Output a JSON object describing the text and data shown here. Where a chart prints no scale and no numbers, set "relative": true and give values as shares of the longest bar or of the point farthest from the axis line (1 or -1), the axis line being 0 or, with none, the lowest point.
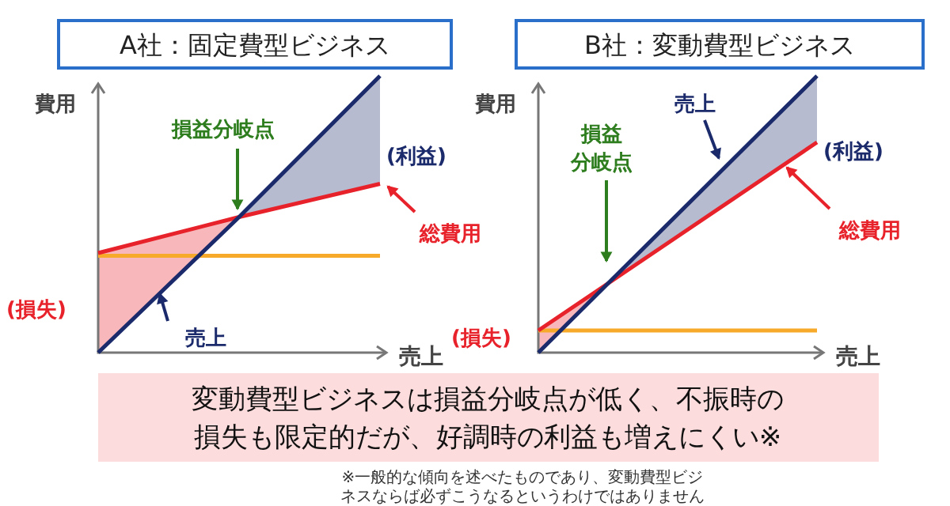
{
  "chart_data": [
    {
      "type": "line",
      "title": "A社：固定費型ビジネス",
      "xlabel": "売上",
      "ylabel": "費用",
      "relative": true,
      "categories": [
        null,
        null,
        null
      ],
      "series": [
        {
          "name": "売上",
          "color": "#1b2a6b",
          "values": [
            0,
            0.49,
            1
          ],
          "lower": [
            null,
            0.49,
            0.61
          ],
          "upper": [
            null,
            0.49,
            1
          ]
        },
        {
          "name": "総費用",
          "color": "#e8222a",
          "values": [
            0.36,
            0.49,
            0.61
          ],
          "lower": [
            0,
            0.49,
            null
          ],
          "upper": [
            0.36,
            0.49,
            null
          ]
        },
        {
          "color": "#f7a929",
          "values": [
            0.35,
            0.35,
            0.35
          ]
        }
      ],
      "annotations": [
        "損益分岐点",
        "(損失)",
        "(利益)"
      ]
    },
    {
      "type": "line",
      "title": "B社：変動費型ビジネス",
      "xlabel": "売上",
      "ylabel": "費用",
      "relative": true,
      "categories": [
        null,
        null,
        null,
        null,
        null
      ],
      "series": [
        {
          "name": "売上",
          "color": "#1b2a6b",
          "values": [
            0,
            0.25,
            0.5,
            0.75,
            1
          ],
          "lower": [
            null,
            0.25,
            0.42,
            0.59,
            0.76
          ],
          "upper": [
            null,
            0.25,
            0.5,
            0.75,
            1
          ]
        },
        {
          "name": "総費用",
          "color": "#e8222a",
          "values": [
            0.08,
            0.25,
            0.42,
            0.59,
            0.76
          ],
          "lower": [
            0,
            0.25,
            null,
            null,
            null
          ],
          "upper": [
            0.08,
            0.25,
            null,
            null,
            null
          ]
        },
        {
          "color": "#f7a929",
          "values": [
            0.08,
            0.08,
            0.08,
            0.08,
            0.08
          ]
        }
      ],
      "annotations": [
        "損益分岐点",
        "(損失)",
        "(利益)"
      ]
    },
    {
      "type": "other",
      "title": "変動費型ビジネスは損益分岐点が低く、不振時の損失も限定的だが、好調時の利益も増えにくい※",
      "annotations": [
        "※一般的な傾向を述べたものであり、変動費型ビジネスならば必ずこうなるというわけではありません"
      ]
    }
  ]
}
